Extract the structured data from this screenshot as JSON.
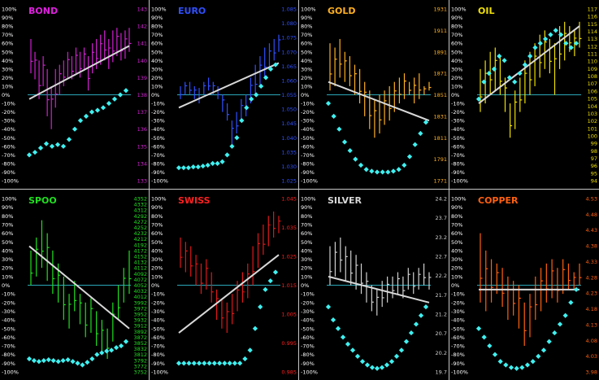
{
  "pct_ticks": [
    "100%",
    "90%",
    "80%",
    "70%",
    "60%",
    "50%",
    "40%",
    "30%",
    "20%",
    "10%",
    "0%",
    "-10%",
    "-20%",
    "-30%",
    "-40%",
    "-50%",
    "-60%",
    "-70%",
    "-80%",
    "-90%",
    "-100%"
  ],
  "chart_data": [
    {
      "type": "bar",
      "title": "BOND",
      "title_color": "#e020e0",
      "bar_color": "#d020d0",
      "price_color": "#d020d0",
      "price_ticks": [
        "143",
        "142",
        "141",
        "140",
        "139",
        "138",
        "137",
        "136",
        "135",
        "134",
        "133"
      ],
      "ylim_pct": [
        -100,
        100
      ],
      "price_lo": [
        25,
        18,
        -5,
        10,
        -25,
        -40,
        -15,
        0,
        10,
        20,
        18,
        25,
        20,
        30,
        5,
        25,
        30,
        35,
        40,
        30,
        38,
        45,
        40,
        42,
        50
      ],
      "price_hi": [
        65,
        50,
        40,
        45,
        30,
        10,
        30,
        35,
        40,
        50,
        45,
        55,
        50,
        55,
        45,
        60,
        65,
        70,
        75,
        65,
        75,
        78,
        72,
        75,
        78
      ],
      "regression": [
        -5,
        57
      ],
      "oscillator": [
        -70,
        -67,
        -62,
        -57,
        -60,
        -58,
        -60,
        -52,
        -40,
        -30,
        -25,
        -20,
        -18,
        -15,
        -10,
        -5,
        0,
        5
      ]
    },
    {
      "type": "bar",
      "title": "EURO",
      "title_color": "#3050ff",
      "bar_color": "#3050ff",
      "price_color": "#3050ff",
      "price_ticks": [
        "1.085",
        "1.080",
        "1.075",
        "1.070",
        "1.065",
        "1.060",
        "1.055",
        "1.050",
        "1.045",
        "1.040",
        "1.035",
        "1.030",
        "1.025"
      ],
      "ylim_pct": [
        -100,
        100
      ],
      "price_lo": [
        -5,
        0,
        0,
        -5,
        -10,
        0,
        5,
        0,
        -5,
        -20,
        -30,
        -60,
        -45,
        -30,
        -25,
        -10,
        0,
        10,
        20,
        30,
        40,
        50
      ],
      "price_hi": [
        10,
        15,
        15,
        10,
        8,
        15,
        20,
        15,
        10,
        0,
        -10,
        -30,
        -20,
        -5,
        0,
        20,
        35,
        45,
        55,
        60,
        65,
        70
      ],
      "regression": [
        -15,
        37
      ],
      "oscillator": [
        -85,
        -85,
        -85,
        -84,
        -84,
        -83,
        -82,
        -80,
        -80,
        -78,
        -70,
        -60,
        -50,
        -30,
        -15,
        -5,
        0,
        10,
        20,
        30,
        35
      ]
    },
    {
      "type": "bar",
      "title": "GOLD",
      "title_color": "#ffb020",
      "bar_color": "#ffb020",
      "price_color": "#ffb020",
      "price_ticks": [
        "1931",
        "1911",
        "1891",
        "1871",
        "1851",
        "1831",
        "1811",
        "1791",
        "1771"
      ],
      "ylim_pct": [
        -100,
        100
      ],
      "price_lo": [
        5,
        10,
        20,
        15,
        10,
        0,
        -10,
        -25,
        -40,
        -50,
        -45,
        -35,
        -30,
        -20,
        -10,
        -5,
        0,
        -10,
        -5,
        0,
        5
      ],
      "price_hi": [
        60,
        55,
        65,
        50,
        45,
        35,
        30,
        15,
        5,
        -5,
        0,
        5,
        10,
        15,
        20,
        25,
        15,
        20,
        25,
        10,
        15
      ],
      "regression": [
        15,
        -30
      ],
      "oscillator": [
        -10,
        -25,
        -40,
        -55,
        -65,
        -75,
        -82,
        -87,
        -89,
        -90,
        -90,
        -90,
        -89,
        -87,
        -82,
        -72,
        -58,
        -45,
        -32
      ]
    },
    {
      "type": "bar",
      "title": "OIL",
      "title_color": "#f0e000",
      "bar_color": "#f0e000",
      "price_color": "#f0e000",
      "price_ticks": [
        "117",
        "116",
        "115",
        "114",
        "113",
        "112",
        "111",
        "110",
        "109",
        "108",
        "107",
        "106",
        "105",
        "104",
        "103",
        "102",
        "101",
        "100",
        "99",
        "98",
        "97",
        "96",
        "95",
        "94"
      ],
      "ylim_pct": [
        -100,
        100
      ],
      "price_lo": [
        -20,
        -10,
        0,
        5,
        0,
        -20,
        -50,
        -40,
        -20,
        -10,
        0,
        10,
        20,
        30,
        25,
        0,
        30,
        40,
        50,
        45,
        55
      ],
      "price_hi": [
        30,
        40,
        50,
        55,
        45,
        20,
        -10,
        5,
        20,
        40,
        50,
        60,
        70,
        75,
        65,
        60,
        80,
        85,
        80,
        75,
        85
      ],
      "regression": [
        -10,
        80
      ],
      "oscillator": [
        -5,
        15,
        25,
        30,
        45,
        40,
        20,
        15,
        25,
        35,
        45,
        55,
        60,
        65,
        70,
        75,
        70,
        60,
        55,
        60
      ]
    },
    {
      "type": "bar",
      "title": "SPOO",
      "title_color": "#20e020",
      "bar_color": "#20e020",
      "price_color": "#20e020",
      "price_ticks": [
        "4352",
        "4332",
        "4312",
        "4292",
        "4272",
        "4252",
        "4232",
        "4212",
        "4192",
        "4172",
        "4152",
        "4132",
        "4112",
        "4092",
        "4072",
        "4052",
        "4032",
        "4012",
        "3992",
        "3972",
        "3952",
        "3932",
        "3912",
        "3892",
        "3872",
        "3852",
        "3832",
        "3812",
        "3792",
        "3772",
        "3752"
      ],
      "ylim_pct": [
        -100,
        100
      ],
      "price_lo": [
        0,
        10,
        20,
        5,
        -10,
        -20,
        -40,
        -50,
        -30,
        -45,
        -60,
        -55,
        -70,
        -80,
        -85,
        -65,
        -40,
        -20,
        -10
      ],
      "price_hi": [
        40,
        55,
        75,
        60,
        40,
        25,
        10,
        -10,
        5,
        -10,
        -20,
        -15,
        -30,
        -40,
        -50,
        -20,
        0,
        20,
        40
      ],
      "regression": [
        45,
        -50
      ],
      "oscillator": [
        -85,
        -87,
        -88,
        -87,
        -86,
        -87,
        -88,
        -87,
        -86,
        -88,
        -90,
        -92,
        -89,
        -85,
        -80,
        -78,
        -76,
        -75,
        -72,
        -70,
        -65
      ]
    },
    {
      "type": "bar",
      "title": "SWISS",
      "title_color": "#ff2020",
      "bar_color": "#e01818",
      "price_color": "#ff2020",
      "price_ticks": [
        "1.045",
        "1.035",
        "1.025",
        "1.015",
        "1.005",
        "0.995",
        "0.985"
      ],
      "ylim_pct": [
        -100,
        100
      ],
      "price_lo": [
        20,
        15,
        10,
        0,
        -10,
        -5,
        -20,
        -40,
        -50,
        -55,
        -45,
        -30,
        -20,
        -15,
        0,
        20,
        35,
        45,
        55,
        60
      ],
      "price_hi": [
        55,
        50,
        45,
        35,
        25,
        30,
        15,
        -5,
        -15,
        -20,
        -10,
        5,
        15,
        25,
        45,
        60,
        70,
        80,
        85,
        80
      ],
      "regression": [
        -55,
        35
      ],
      "oscillator": [
        -90,
        -90,
        -90,
        -90,
        -90,
        -90,
        -90,
        -90,
        -90,
        -90,
        -90,
        -90,
        -90,
        -85,
        -75,
        -50,
        -25,
        -5,
        5,
        15
      ]
    },
    {
      "type": "bar",
      "title": "SILVER",
      "title_color": "#d8d8d8",
      "bar_color": "#d0d0d0",
      "price_color": "#d0d0d0",
      "price_ticks": [
        "24.2",
        "23.7",
        "23.2",
        "22.7",
        "22.2",
        "21.7",
        "21.2",
        "20.7",
        "20.2",
        "19.7"
      ],
      "ylim_pct": [
        -100,
        100
      ],
      "price_lo": [
        0,
        10,
        15,
        5,
        0,
        -5,
        -10,
        -20,
        -30,
        -35,
        -25,
        -20,
        -15,
        -10,
        -15,
        -5,
        -10,
        -5,
        0,
        -5
      ],
      "price_hi": [
        45,
        50,
        55,
        45,
        40,
        35,
        25,
        15,
        0,
        -5,
        5,
        10,
        10,
        15,
        10,
        20,
        15,
        20,
        25,
        15
      ],
      "regression": [
        10,
        -20
      ],
      "oscillator": [
        -25,
        -40,
        -50,
        -60,
        -68,
        -75,
        -82,
        -88,
        -92,
        -95,
        -96,
        -95,
        -92,
        -88,
        -82,
        -75,
        -65,
        -55,
        -45,
        -35,
        -25
      ]
    },
    {
      "type": "bar",
      "title": "COPPER",
      "title_color": "#ff6010",
      "bar_color": "#ff6010",
      "price_color": "#ff6010",
      "price_ticks": [
        "4.53",
        "4.48",
        "4.43",
        "4.38",
        "4.33",
        "4.28",
        "4.23",
        "4.18",
        "4.13",
        "4.08",
        "4.03",
        "3.98"
      ],
      "ylim_pct": [
        -100,
        100
      ],
      "price_lo": [
        -20,
        -30,
        -20,
        -10,
        -25,
        -40,
        -35,
        -50,
        -70,
        -60,
        -40,
        -30,
        -20,
        -15,
        -20,
        -10,
        -5,
        -5,
        0
      ],
      "price_hi": [
        60,
        40,
        30,
        25,
        20,
        10,
        5,
        0,
        -20,
        -10,
        10,
        20,
        25,
        30,
        20,
        30,
        25,
        15,
        25
      ],
      "regression": [
        -5,
        -5
      ],
      "oscillator": [
        -50,
        -60,
        -70,
        -80,
        -88,
        -92,
        -95,
        -96,
        -95,
        -92,
        -88,
        -82,
        -75,
        -65,
        -55,
        -45,
        -35,
        -20,
        -5
      ]
    }
  ]
}
